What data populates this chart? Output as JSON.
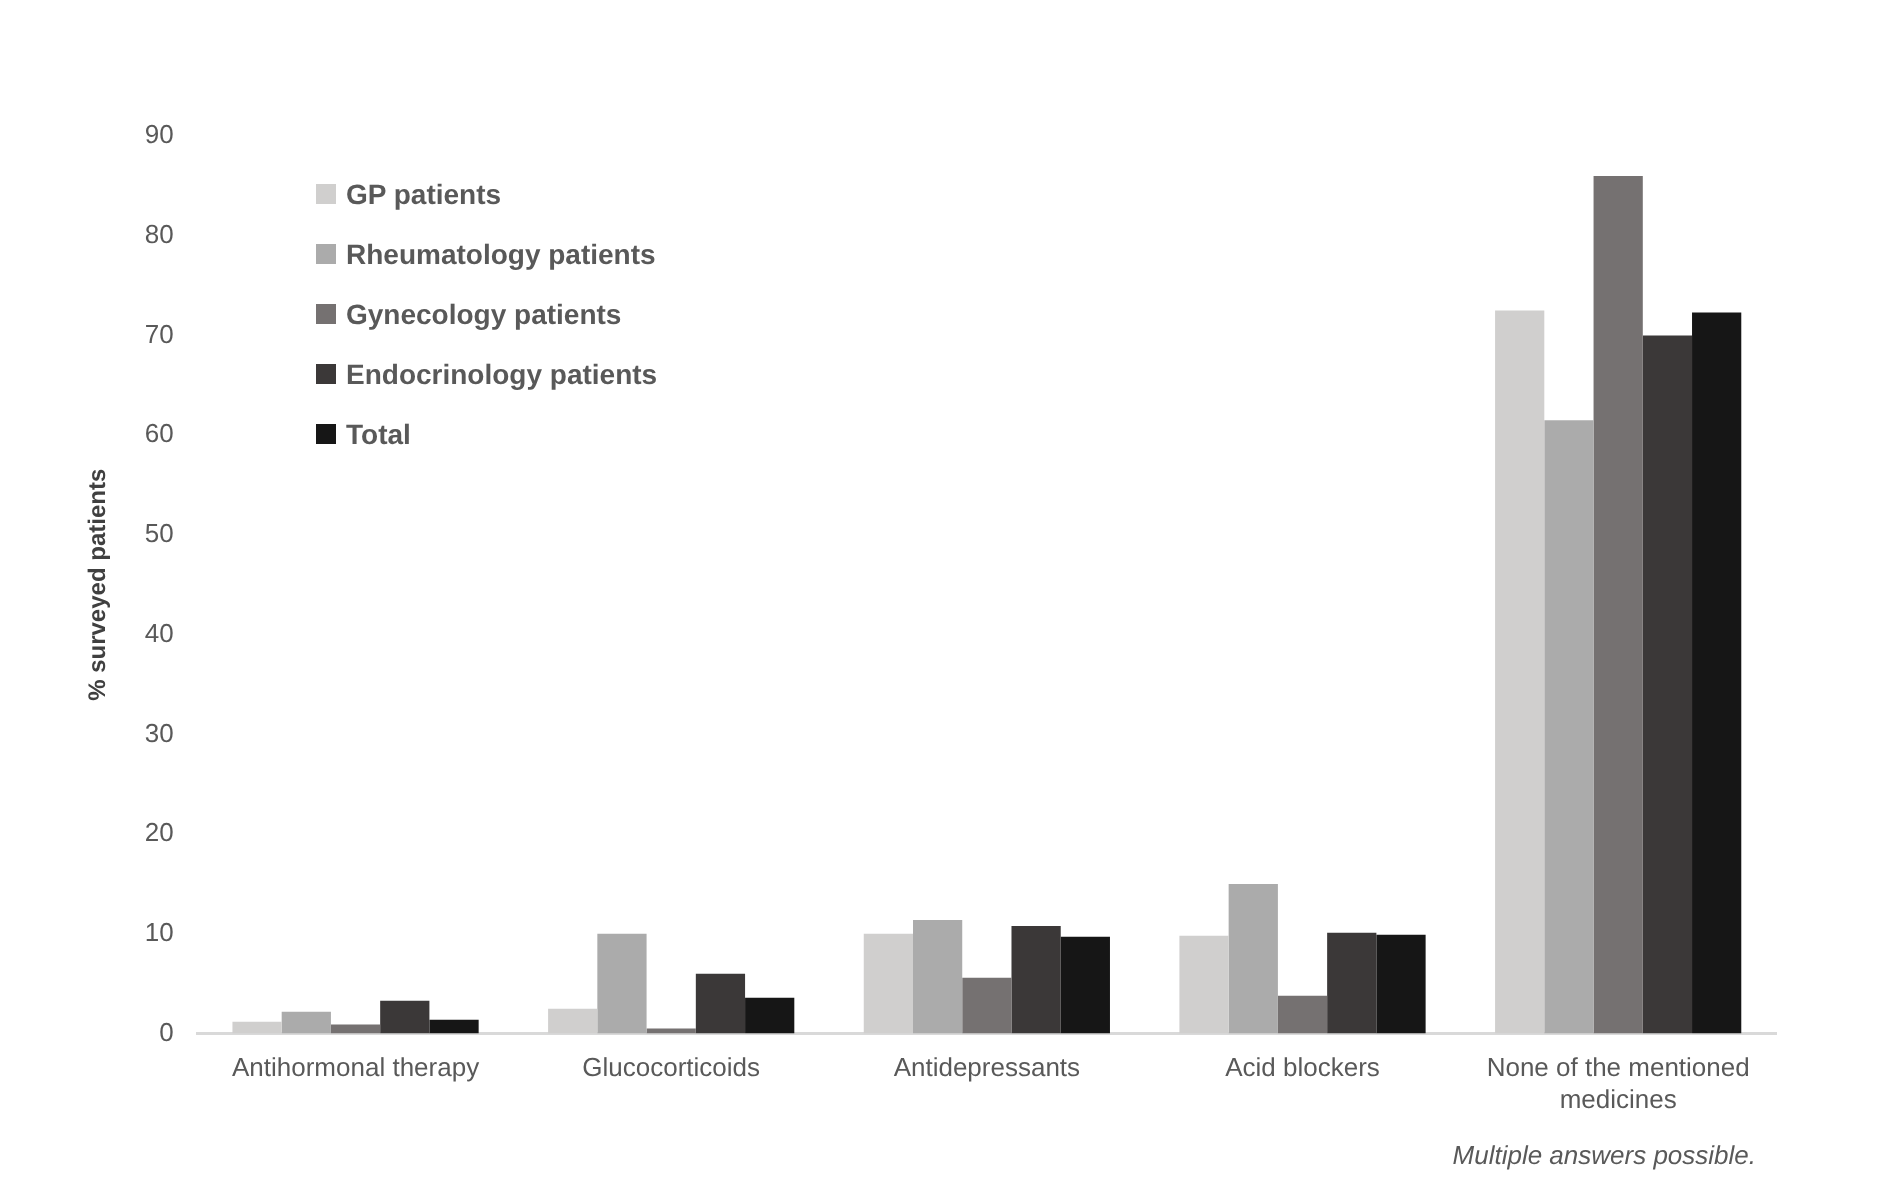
{
  "chart_data": {
    "type": "bar",
    "ylabel": "% surveyed patients",
    "categories": [
      "Antihormonal therapy",
      "Glucocorticoids",
      "Antidepressants",
      "Acid blockers",
      "None of the mentioned medicines"
    ],
    "series": [
      {
        "name": "GP patients",
        "color": "#d0cfce",
        "values": [
          1.2,
          2.5,
          10,
          9.8,
          72.5
        ]
      },
      {
        "name": "Rheumatology patients",
        "color": "#ababab",
        "values": [
          2.2,
          10,
          11.4,
          15,
          61.5
        ]
      },
      {
        "name": "Gynecology patients",
        "color": "#757171",
        "values": [
          0.9,
          0.5,
          5.6,
          3.8,
          86
        ]
      },
      {
        "name": "Endocrinology patients",
        "color": "#3b3838",
        "values": [
          3.3,
          6,
          10.8,
          10.1,
          70
        ]
      },
      {
        "name": "Total",
        "color": "#161616",
        "values": [
          1.4,
          3.6,
          9.7,
          9.9,
          72.3
        ]
      }
    ],
    "ylim": [
      0,
      90
    ],
    "yticks": [
      0,
      10,
      20,
      30,
      40,
      50,
      60,
      70,
      80,
      90
    ],
    "grid": false,
    "legend": "top left",
    "annotations": [
      "Multiple answers possible."
    ]
  }
}
